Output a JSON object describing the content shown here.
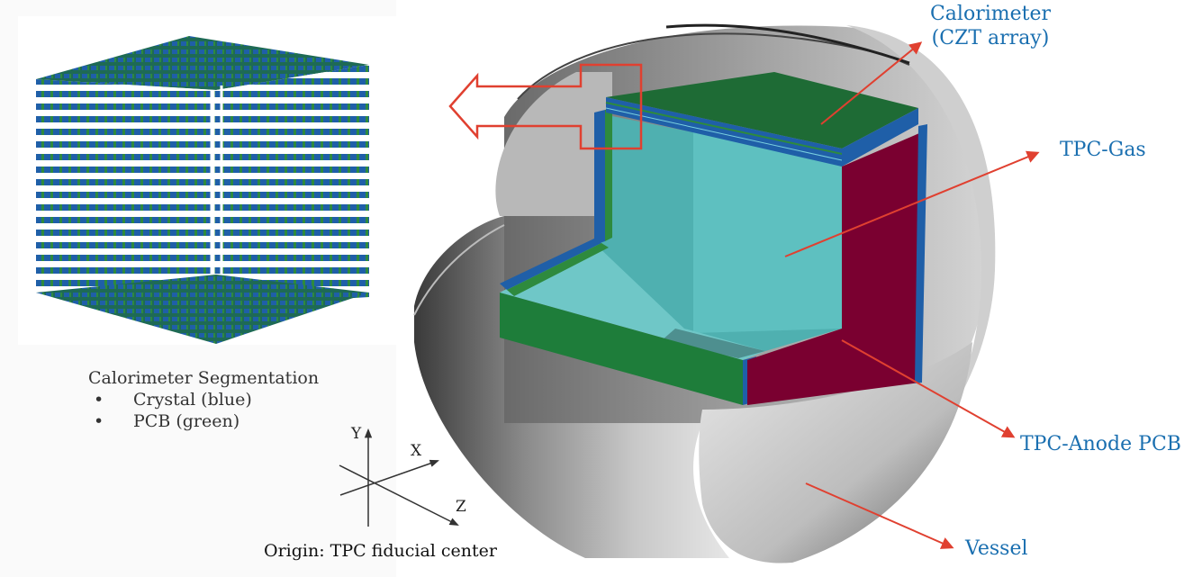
{
  "segmentation": {
    "title": "Calorimeter Segmentation",
    "items": [
      {
        "bullet": "•",
        "label": "Crystal (blue)"
      },
      {
        "bullet": "•",
        "label": "PCB (green)"
      }
    ]
  },
  "axes": {
    "y": "Y",
    "x": "X",
    "z": "Z"
  },
  "origin_caption": "Origin: TPC fiducial center",
  "callouts": {
    "calorimeter_line1": "Calorimeter",
    "calorimeter_line2": "(CZT array)",
    "tpc_gas": "TPC-Gas",
    "tpc_anode": "TPC-Anode PCB",
    "vessel": "Vessel"
  },
  "colors": {
    "crystal_blue": "#1f5fa8",
    "pcb_green": "#1e7d3a",
    "gas_cyan": "#4fb0b0",
    "anode_crimson": "#7a0030",
    "vessel_gray": "#9a9a9a",
    "arrow_red": "#e04030",
    "label_blue": "#1a6fb0"
  }
}
